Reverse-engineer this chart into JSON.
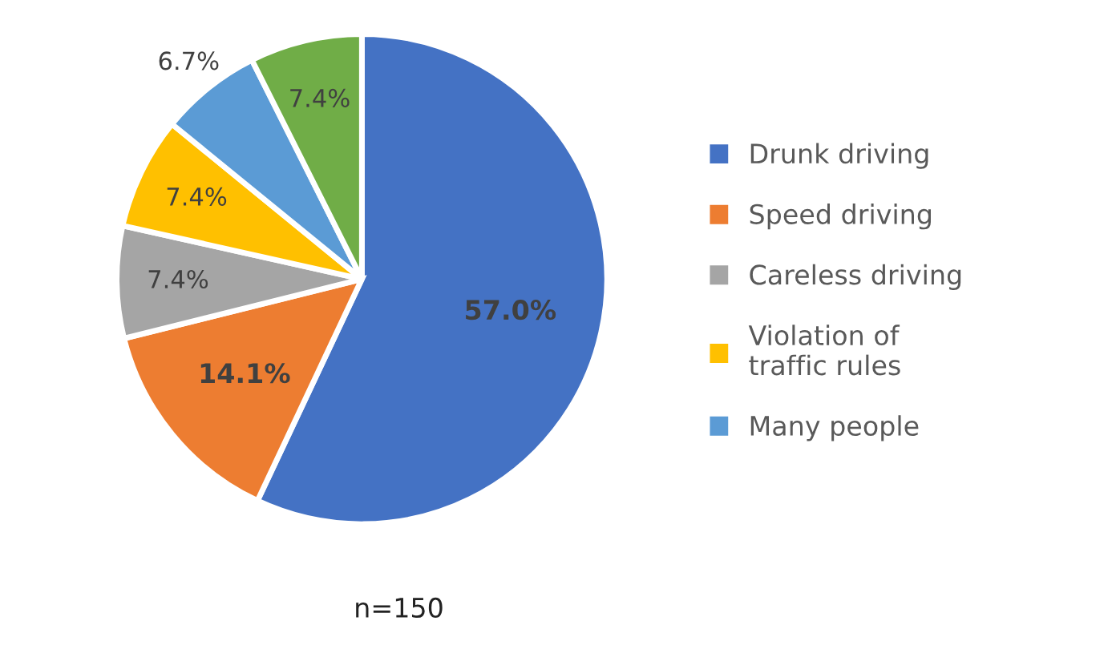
{
  "chart_data": {
    "type": "pie",
    "categories": [
      "Drunk driving",
      "Speed driving",
      "Careless driving",
      "Violation of traffic rules",
      "Many people",
      null
    ],
    "values": [
      57.0,
      14.1,
      7.4,
      7.4,
      6.7,
      7.4
    ],
    "colors": [
      "#4472c4",
      "#ed7d31",
      "#a5a5a5",
      "#ffc000",
      "#5b9bd5",
      "#70ad47"
    ],
    "value_labels": [
      "57.0%",
      "14.1%",
      "7.4%",
      "7.4%",
      "6.7%",
      "7.4%"
    ],
    "legend": "right",
    "annotations": [
      "n=150"
    ]
  }
}
